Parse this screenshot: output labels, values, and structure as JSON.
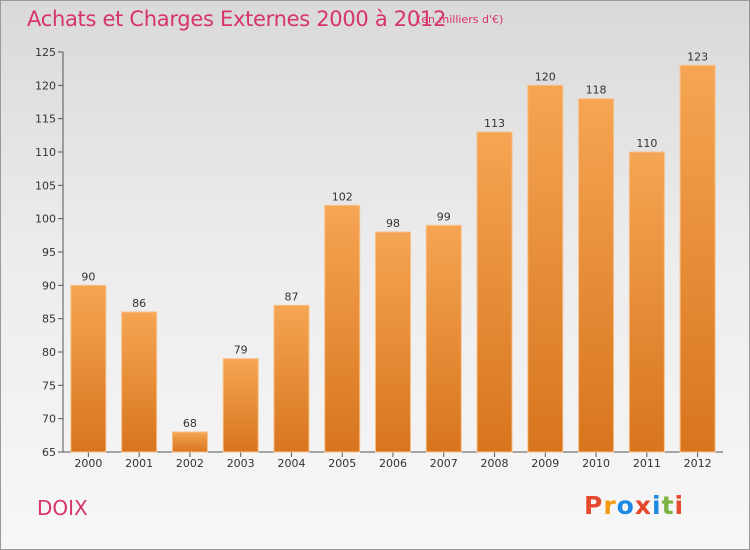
{
  "header": {
    "title": "Achats et Charges Externes 2000 à 2012",
    "subtitle": "(en milliers d'€)"
  },
  "footer": {
    "commune": "DOIX",
    "brand": "Proxiti"
  },
  "colors": {
    "bar_top": "#f5a553",
    "bar_bottom": "#d8751e",
    "title": "#d6346a",
    "brand_letters": [
      "#e64a2e",
      "#f39c12",
      "#1e88e5",
      "#e64a2e",
      "#1e88e5",
      "#7cb342",
      "#e64a2e"
    ]
  },
  "chart_data": {
    "type": "bar",
    "title": "Achats et Charges Externes 2000 à 2012",
    "xlabel": "",
    "ylabel": "",
    "categories": [
      "2000",
      "2001",
      "2002",
      "2003",
      "2004",
      "2005",
      "2006",
      "2007",
      "2008",
      "2009",
      "2010",
      "2011",
      "2012"
    ],
    "values": [
      90,
      86,
      68,
      79,
      87,
      102,
      98,
      99,
      113,
      120,
      118,
      110,
      123
    ],
    "ylim": [
      65,
      125
    ],
    "yticks": [
      65,
      70,
      75,
      80,
      85,
      90,
      95,
      100,
      105,
      110,
      115,
      120,
      125
    ],
    "grid": false,
    "legend": "none"
  }
}
